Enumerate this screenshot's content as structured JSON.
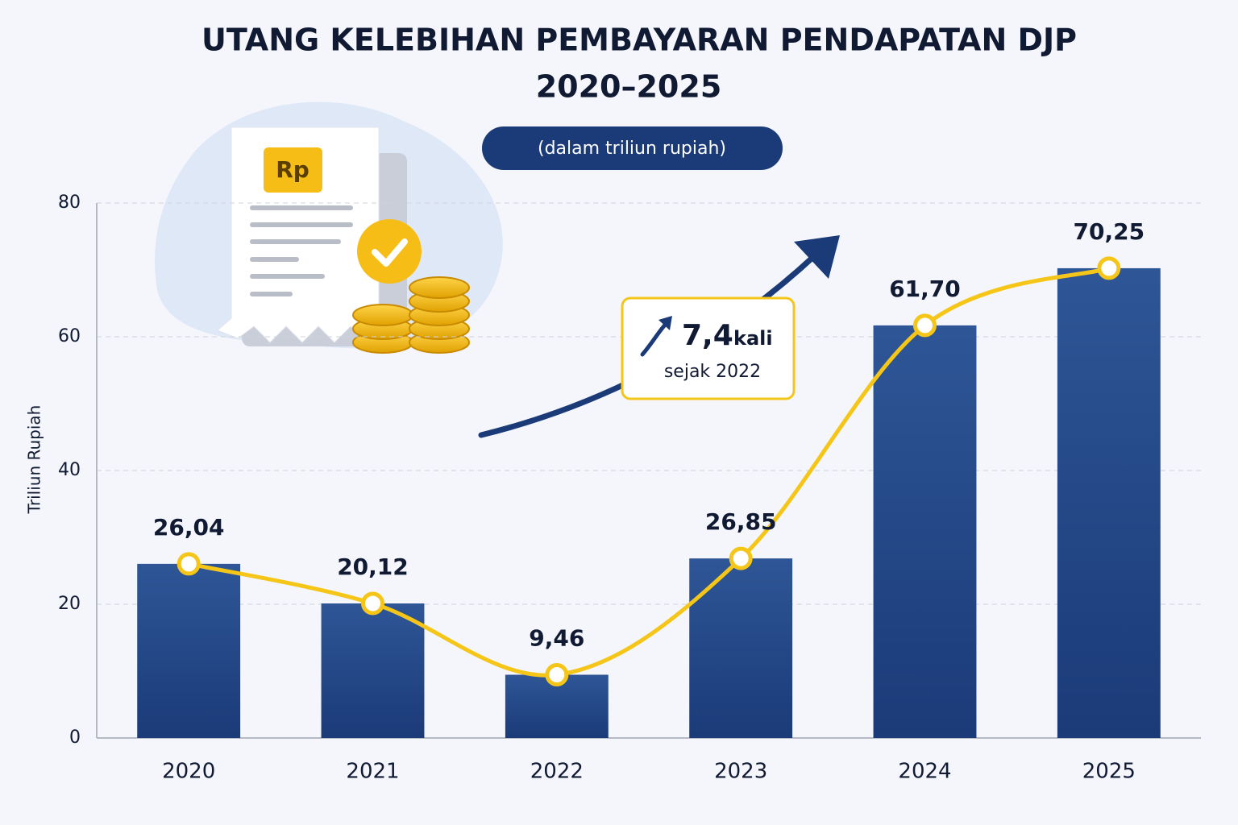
{
  "chart_data": {
    "type": "bar",
    "title": [
      "UTANG KELEBIHAN PEMBAYARAN PENDAPATAN DJP",
      "2020–2025"
    ],
    "subtitle": "(dalam triliun rupiah)",
    "y_label": "Triliun Rupiah",
    "categories": [
      "2020",
      "2021",
      "2022",
      "2023",
      "2024",
      "2025"
    ],
    "values": [
      26.04,
      20.12,
      9.46,
      26.85,
      61.7,
      70.25
    ],
    "value_labels": [
      "26,04",
      "20,12",
      "9,46",
      "26,85",
      "61,70",
      "70,25"
    ],
    "color": "#24488a",
    "line_overlay": true,
    "line_color": "#f5c518",
    "ylim": [
      0,
      80
    ],
    "yticks": [
      0,
      20,
      40,
      60,
      80
    ],
    "grid": true,
    "annotation": [
      "7,4",
      "kali",
      "sejak 2022"
    ],
    "icon_label": "Rp"
  }
}
